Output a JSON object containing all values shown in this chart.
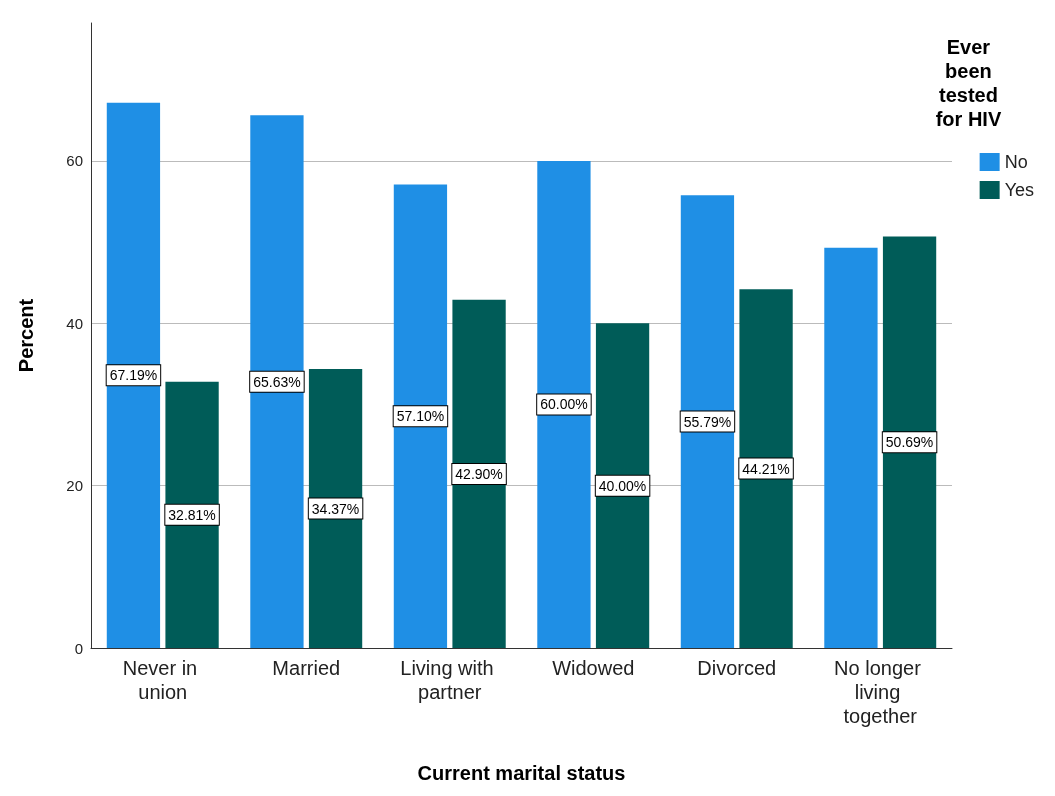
{
  "chart_data": {
    "type": "bar",
    "xlabel": "Current marital status",
    "ylabel": "Percent",
    "legend_title": "Ever been tested for HIV",
    "categories": [
      "Never in union",
      "Married",
      "Living with partner",
      "Widowed",
      "Divorced",
      "No longer living together"
    ],
    "series": [
      {
        "name": "No",
        "color": "#1f8fe5",
        "values": [
          67.19,
          65.63,
          57.1,
          60,
          55.79,
          49.3
        ],
        "value_labels": [
          "67.19%",
          "65.63%",
          "57.10%",
          "60.00%",
          "55.79%",
          null
        ]
      },
      {
        "name": "Yes",
        "color": "#005c58",
        "values": [
          32.81,
          34.37,
          42.9,
          40,
          44.21,
          50.69
        ],
        "value_labels": [
          "32.81%",
          "34.37%",
          "42.90%",
          "40.00%",
          "44.21%",
          "50.69%"
        ]
      }
    ],
    "ylim": [
      0,
      77
    ],
    "yticks": [
      0,
      20,
      40,
      60
    ],
    "grid": "y",
    "legend": "top right"
  }
}
